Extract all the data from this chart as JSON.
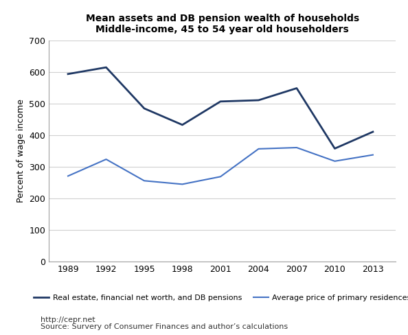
{
  "title_line1": "Mean assets and DB pension wealth of households",
  "title_line2": "Middle-income, 45 to 54 year old householders",
  "ylabel": "Percent of wage income",
  "years": [
    1989,
    1992,
    1995,
    1998,
    2001,
    2004,
    2007,
    2010,
    2013
  ],
  "series1_label": "Real estate, financial net worth, and DB pensions",
  "series1_values": [
    593,
    614,
    484,
    432,
    506,
    510,
    548,
    357,
    410
  ],
  "series1_color": "#1f3864",
  "series2_label": "Average price of primary residences",
  "series2_values": [
    270,
    323,
    255,
    244,
    268,
    356,
    360,
    317,
    337
  ],
  "series2_color": "#4472c4",
  "ylim": [
    0,
    700
  ],
  "yticks": [
    0,
    100,
    200,
    300,
    400,
    500,
    600,
    700
  ],
  "grid_color": "#d0d0d0",
  "footnote_line1": "http://cepr.net",
  "footnote_line2": "Source: Survery of Consumer Finances and author’s calculations",
  "bg_color": "#ffffff",
  "plot_bg_color": "#ffffff"
}
